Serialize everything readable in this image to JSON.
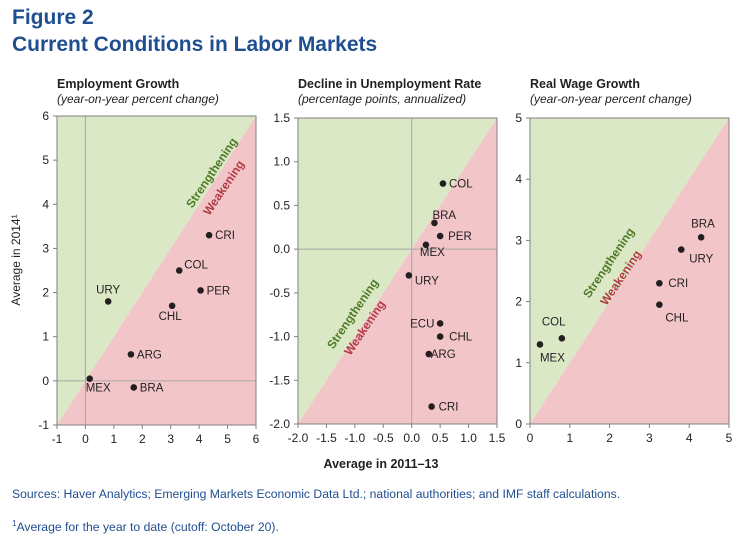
{
  "figure": {
    "label": "Figure 2",
    "title": "Current Conditions in Labor Markets",
    "shared_xlabel": "Average in 2011–13",
    "ylabel": "Average in 2014¹",
    "sources": "Sources: Haver Analytics; Emerging Markets Economic Data Ltd.; national authorities; and IMF staff calculations.",
    "footnote_mark": "1",
    "footnote": "Average for the year to date (cutoff: October 20)."
  },
  "colors": {
    "above_fill": "#dbe8c6",
    "below_fill": "#f2c5c9",
    "strengthening": "#4f7a28",
    "weakening": "#b23b45",
    "point": "#231f20",
    "grid": "#a6a6a6",
    "text": "#231f20"
  },
  "chart_data": [
    {
      "type": "scatter",
      "title": "Employment Growth",
      "subtitle": "(year-on-year percent change)",
      "xlim": [
        -1,
        6
      ],
      "ylim": [
        -1,
        6
      ],
      "xticks": [
        -1,
        0,
        1,
        2,
        3,
        4,
        5,
        6
      ],
      "yticks": [
        -1,
        0,
        1,
        2,
        3,
        4,
        5,
        6
      ],
      "xtick_labels": [
        "-1",
        "0",
        "1",
        "2",
        "3",
        "4",
        "5",
        "6"
      ],
      "ytick_labels": [
        "-1",
        "0",
        "1",
        "2",
        "3",
        "4",
        "5",
        "6"
      ],
      "zero_lines": true,
      "region_above": "Strengthening",
      "region_below": "Weakening",
      "points": [
        {
          "label": "CRI",
          "x": 4.35,
          "y": 3.3
        },
        {
          "label": "COL",
          "x": 3.3,
          "y": 2.5
        },
        {
          "label": "PER",
          "x": 4.05,
          "y": 2.05
        },
        {
          "label": "CHL",
          "x": 3.05,
          "y": 1.7
        },
        {
          "label": "URY",
          "x": 0.8,
          "y": 1.8
        },
        {
          "label": "ARG",
          "x": 1.6,
          "y": 0.6
        },
        {
          "label": "MEX",
          "x": 0.15,
          "y": 0.05
        },
        {
          "label": "BRA",
          "x": 1.7,
          "y": -0.15
        }
      ]
    },
    {
      "type": "scatter",
      "title": "Decline in Unemployment Rate",
      "subtitle": "(percentage points, annualized)",
      "xlim": [
        -2.0,
        1.5
      ],
      "ylim": [
        -2.0,
        1.5
      ],
      "xticks": [
        -2.0,
        -1.5,
        -1.0,
        -0.5,
        0.0,
        0.5,
        1.0,
        1.5
      ],
      "yticks": [
        -2.0,
        -1.5,
        -1.0,
        -0.5,
        0.0,
        0.5,
        1.0,
        1.5
      ],
      "xtick_labels": [
        "-2.0",
        "-1.5",
        "-1.0",
        "-0.5",
        "0.0",
        "0.5",
        "1.0",
        "1.5"
      ],
      "ytick_labels": [
        "-2.0",
        "-1.5",
        "-1.0",
        "-0.5",
        "0.0",
        "0.5",
        "1.0",
        "1.5"
      ],
      "zero_lines": true,
      "region_above": "Strengthening",
      "region_below": "Weakening",
      "points": [
        {
          "label": "COL",
          "x": 0.55,
          "y": 0.75
        },
        {
          "label": "BRA",
          "x": 0.4,
          "y": 0.3
        },
        {
          "label": "PER",
          "x": 0.5,
          "y": 0.15
        },
        {
          "label": "MEX",
          "x": 0.25,
          "y": 0.05
        },
        {
          "label": "URY",
          "x": -0.05,
          "y": -0.3
        },
        {
          "label": "ECU",
          "x": 0.5,
          "y": -0.85
        },
        {
          "label": "CHL",
          "x": 0.5,
          "y": -1.0
        },
        {
          "label": "ARG",
          "x": 0.3,
          "y": -1.2
        },
        {
          "label": "CRI",
          "x": 0.35,
          "y": -1.8
        }
      ]
    },
    {
      "type": "scatter",
      "title": "Real Wage Growth",
      "subtitle": "(year-on-year percent change)",
      "xlim": [
        0,
        5
      ],
      "ylim": [
        0,
        5
      ],
      "xticks": [
        0,
        1,
        2,
        3,
        4,
        5
      ],
      "yticks": [
        0,
        1,
        2,
        3,
        4,
        5
      ],
      "xtick_labels": [
        "0",
        "1",
        "2",
        "3",
        "4",
        "5"
      ],
      "ytick_labels": [
        "0",
        "1",
        "2",
        "3",
        "4",
        "5"
      ],
      "zero_lines": false,
      "region_above": "Strengthening",
      "region_below": "Weakening",
      "points": [
        {
          "label": "BRA",
          "x": 4.3,
          "y": 3.05
        },
        {
          "label": "URY",
          "x": 3.8,
          "y": 2.85
        },
        {
          "label": "CRI",
          "x": 3.25,
          "y": 2.3
        },
        {
          "label": "CHL",
          "x": 3.25,
          "y": 1.95
        },
        {
          "label": "COL",
          "x": 0.8,
          "y": 1.4
        },
        {
          "label": "MEX",
          "x": 0.25,
          "y": 1.3
        }
      ]
    }
  ]
}
